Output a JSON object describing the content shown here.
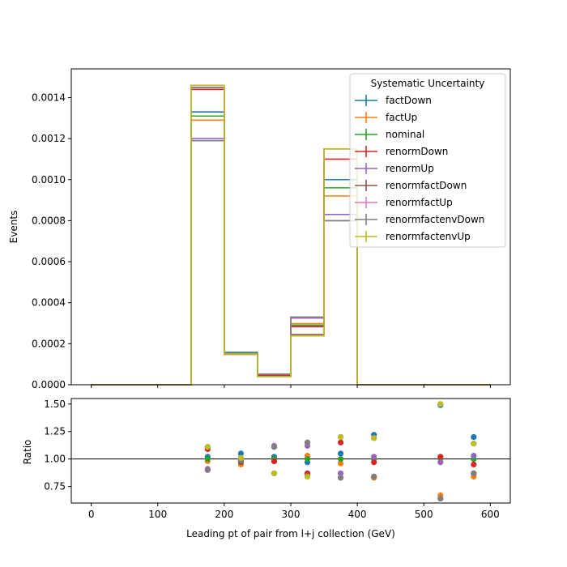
{
  "chart_data": [
    {
      "type": "line",
      "xlabel": "",
      "ylabel": "Events",
      "xlim": [
        -30,
        630
      ],
      "ylim": [
        0,
        0.00154
      ],
      "xticks": [
        0,
        100,
        200,
        300,
        400,
        500,
        600
      ],
      "yticks": [
        "0.0000",
        "0.0002",
        "0.0004",
        "0.0006",
        "0.0008",
        "0.0010",
        "0.0012",
        "0.0014"
      ],
      "bin_edges": [
        0,
        50,
        100,
        150,
        200,
        250,
        300,
        350,
        400,
        450,
        500,
        550,
        600
      ],
      "legend_title": "Systematic Uncertainty",
      "legend_position": "top-right",
      "series": [
        {
          "name": "factDown",
          "color": "#1f77b4",
          "values": [
            0,
            0,
            0,
            0.00133,
            0.000158,
            4.7e-05,
            0.000283,
            0.001,
            0,
            0,
            0,
            0
          ]
        },
        {
          "name": "factUp",
          "color": "#ff7f0e",
          "values": [
            0,
            0,
            0,
            0.00129,
            0.000148,
            4.5e-05,
            0.000298,
            0.00092,
            0,
            0,
            0,
            0
          ]
        },
        {
          "name": "nominal",
          "color": "#2ca02c",
          "values": [
            0,
            0,
            0,
            0.00131,
            0.000155,
            4.6e-05,
            0.00029,
            0.00096,
            0,
            0,
            0,
            0
          ]
        },
        {
          "name": "renormDown",
          "color": "#d62728",
          "values": [
            0,
            0,
            0,
            0.00144,
            0.000152,
            4.5e-05,
            0.000283,
            0.0011,
            0,
            0,
            0,
            0
          ]
        },
        {
          "name": "renormUp",
          "color": "#9467bd",
          "values": [
            0,
            0,
            0,
            0.0012,
            0.000152,
            5.2e-05,
            0.000325,
            0.00083,
            0,
            0,
            0,
            0
          ]
        },
        {
          "name": "renormfactDown",
          "color": "#8c564b",
          "values": [
            0,
            0,
            0,
            0.00145,
            0.00015,
            4e-05,
            0.000245,
            0.00115,
            0,
            0,
            0,
            0
          ]
        },
        {
          "name": "renormfactUp",
          "color": "#e377c2",
          "values": [
            0,
            0,
            0,
            0.00119,
            0.00015,
            5.2e-05,
            0.00033,
            0.0008,
            0,
            0,
            0,
            0
          ]
        },
        {
          "name": "renormfactenvDown",
          "color": "#7f7f7f",
          "values": [
            0,
            0,
            0,
            0.00119,
            0.00015,
            5.2e-05,
            0.00033,
            0.0008,
            0,
            0,
            0,
            0
          ]
        },
        {
          "name": "renormfactenvUp",
          "color": "#bcbd22",
          "values": [
            0,
            0,
            0,
            0.00146,
            0.00015,
            4e-05,
            0.000238,
            0.00115,
            0,
            0,
            0,
            0
          ]
        }
      ]
    },
    {
      "type": "scatter",
      "xlabel": "Leading pt of pair from l+j collection (GeV)",
      "ylabel": "Ratio",
      "xlim": [
        -30,
        630
      ],
      "ylim": [
        0.6,
        1.55
      ],
      "xticks": [
        0,
        100,
        200,
        300,
        400,
        500,
        600
      ],
      "yticks": [
        "0.75",
        "1.00",
        "1.25",
        "1.50"
      ],
      "reference_line": 1.0,
      "x": [
        175,
        225,
        275,
        325,
        375,
        425,
        525,
        575
      ],
      "series": [
        {
          "name": "factDown",
          "color": "#1f77b4",
          "values": [
            1.02,
            1.05,
            1.02,
            0.97,
            1.05,
            1.22,
            1.49,
            1.2
          ]
        },
        {
          "name": "factUp",
          "color": "#ff7f0e",
          "values": [
            0.98,
            0.95,
            0.98,
            1.03,
            0.96,
            0.83,
            0.67,
            0.84
          ]
        },
        {
          "name": "nominal",
          "color": "#2ca02c",
          "values": [
            1.0,
            1.0,
            1.0,
            1.0,
            1.0,
            1.0,
            1.0,
            1.0
          ]
        },
        {
          "name": "renormDown",
          "color": "#d62728",
          "values": [
            1.09,
            0.98,
            0.98,
            0.87,
            1.15,
            0.97,
            1.02,
            0.95
          ]
        },
        {
          "name": "renormUp",
          "color": "#9467bd",
          "values": [
            0.91,
            0.98,
            1.12,
            1.12,
            0.87,
            1.02,
            0.97,
            1.03
          ]
        },
        {
          "name": "renormfactDown",
          "color": "#8c564b",
          "values": [
            1.11,
            0.97,
            0.87,
            0.85,
            1.2,
            0.84,
            0.64,
            0.87
          ]
        },
        {
          "name": "renormfactUp",
          "color": "#e377c2",
          "values": [
            0.9,
            1.0,
            1.11,
            1.15,
            0.83,
            1.19,
            1.5,
            1.14
          ]
        },
        {
          "name": "renormfactenvDown",
          "color": "#7f7f7f",
          "values": [
            0.9,
            0.99,
            1.11,
            1.15,
            0.83,
            0.84,
            0.64,
            0.87
          ]
        },
        {
          "name": "renormfactenvUp",
          "color": "#bcbd22",
          "values": [
            1.11,
            1.01,
            0.87,
            0.84,
            1.2,
            1.19,
            1.5,
            1.14
          ]
        }
      ]
    }
  ]
}
